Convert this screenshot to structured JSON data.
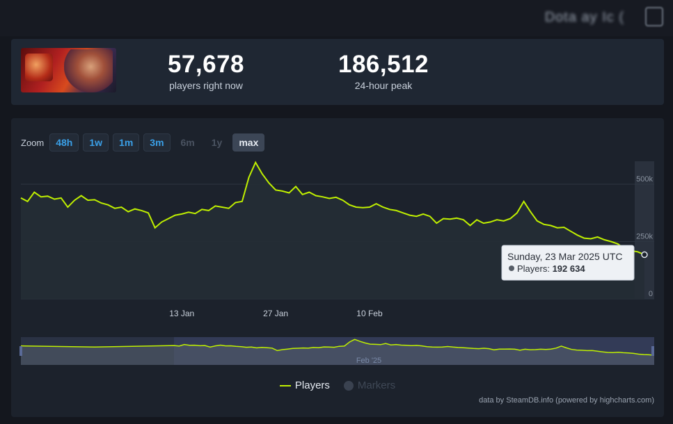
{
  "header": {
    "title_blurred": "Dota ay Ic ("
  },
  "stats": {
    "current_players": "57,678",
    "current_label": "players right now",
    "peak_players": "186,512",
    "peak_label": "24-hour peak"
  },
  "zoom": {
    "label": "Zoom",
    "buttons": [
      {
        "label": "48h",
        "state": "enabled"
      },
      {
        "label": "1w",
        "state": "enabled"
      },
      {
        "label": "1m",
        "state": "enabled"
      },
      {
        "label": "3m",
        "state": "enabled"
      },
      {
        "label": "6m",
        "state": "disabled"
      },
      {
        "label": "1y",
        "state": "disabled"
      },
      {
        "label": "max",
        "state": "active"
      }
    ]
  },
  "tooltip": {
    "date": "Sunday, 23 Mar 2025 UTC",
    "series_label": "Players: ",
    "value": "192 634"
  },
  "navigator": {
    "label": "Feb '25"
  },
  "legend": {
    "players": "Players",
    "markers": "Markers"
  },
  "credits": "data by SteamDB.info (powered by highcharts.com)",
  "colors": {
    "line": "#c0f000",
    "accent": "#3aa0e8",
    "background": "#1c222c"
  },
  "chart_data": {
    "type": "line",
    "title": "",
    "xlabel": "",
    "ylabel": "",
    "ylim": [
      0,
      600000
    ],
    "y_ticks": [
      "0",
      "250k",
      "500k"
    ],
    "x_tick_labels": [
      "13 Jan",
      "27 Jan",
      "10 Feb"
    ],
    "x_range": [
      "2024-12-20",
      "2025-03-23"
    ],
    "grid": true,
    "legend_position": "bottom",
    "series": [
      {
        "name": "Players",
        "x": [
          "2024-12-20",
          "2024-12-21",
          "2024-12-22",
          "2024-12-23",
          "2024-12-24",
          "2024-12-25",
          "2024-12-26",
          "2024-12-27",
          "2024-12-28",
          "2024-12-29",
          "2024-12-30",
          "2024-12-31",
          "2025-01-01",
          "2025-01-02",
          "2025-01-03",
          "2025-01-04",
          "2025-01-05",
          "2025-01-06",
          "2025-01-07",
          "2025-01-08",
          "2025-01-09",
          "2025-01-10",
          "2025-01-11",
          "2025-01-12",
          "2025-01-13",
          "2025-01-14",
          "2025-01-15",
          "2025-01-16",
          "2025-01-17",
          "2025-01-18",
          "2025-01-19",
          "2025-01-20",
          "2025-01-21",
          "2025-01-22",
          "2025-01-23",
          "2025-01-24",
          "2025-01-25",
          "2025-01-26",
          "2025-01-27",
          "2025-01-28",
          "2025-01-29",
          "2025-01-30",
          "2025-01-31",
          "2025-02-01",
          "2025-02-02",
          "2025-02-03",
          "2025-02-04",
          "2025-02-05",
          "2025-02-06",
          "2025-02-07",
          "2025-02-08",
          "2025-02-09",
          "2025-02-10",
          "2025-02-11",
          "2025-02-12",
          "2025-02-13",
          "2025-02-14",
          "2025-02-15",
          "2025-02-16",
          "2025-02-17",
          "2025-02-18",
          "2025-02-19",
          "2025-02-20",
          "2025-02-21",
          "2025-02-22",
          "2025-02-23",
          "2025-02-24",
          "2025-02-25",
          "2025-02-26",
          "2025-02-27",
          "2025-02-28",
          "2025-03-01",
          "2025-03-02",
          "2025-03-03",
          "2025-03-04",
          "2025-03-05",
          "2025-03-06",
          "2025-03-07",
          "2025-03-08",
          "2025-03-09",
          "2025-03-10",
          "2025-03-11",
          "2025-03-12",
          "2025-03-13",
          "2025-03-14",
          "2025-03-15",
          "2025-03-16",
          "2025-03-17",
          "2025-03-18",
          "2025-03-19",
          "2025-03-20",
          "2025-03-21",
          "2025-03-22",
          "2025-03-23"
        ],
        "values": [
          440000,
          425000,
          465000,
          445000,
          448000,
          435000,
          440000,
          400000,
          430000,
          450000,
          430000,
          432000,
          418000,
          410000,
          395000,
          400000,
          380000,
          392000,
          385000,
          375000,
          310000,
          335000,
          350000,
          365000,
          370000,
          378000,
          372000,
          390000,
          385000,
          405000,
          400000,
          395000,
          420000,
          425000,
          530000,
          595000,
          545000,
          505000,
          475000,
          470000,
          462000,
          490000,
          455000,
          465000,
          450000,
          445000,
          438000,
          443000,
          430000,
          410000,
          400000,
          398000,
          400000,
          415000,
          400000,
          390000,
          385000,
          375000,
          365000,
          360000,
          370000,
          360000,
          330000,
          350000,
          348000,
          352000,
          345000,
          320000,
          345000,
          330000,
          335000,
          345000,
          340000,
          350000,
          375000,
          425000,
          380000,
          340000,
          325000,
          320000,
          310000,
          312000,
          295000,
          278000,
          265000,
          262000,
          270000,
          258000,
          250000,
          240000,
          220000,
          210000,
          205000,
          192634
        ]
      }
    ]
  }
}
